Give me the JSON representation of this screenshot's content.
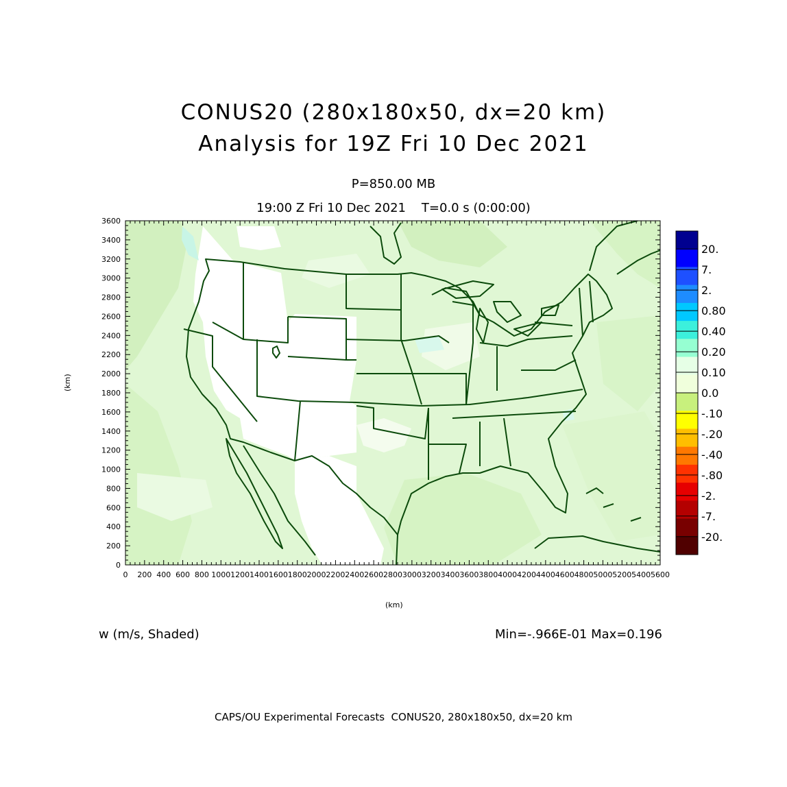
{
  "header": {
    "title_line1": "CONUS20 (280x180x50, dx=20 km)",
    "title_line2": "Analysis for 19Z Fri 10 Dec 2021",
    "level": "P=850.00 MB",
    "time": "19:00 Z Fri 10 Dec 2021    T=0.0 s (0:00:00)"
  },
  "axes": {
    "x_label": "(km)",
    "y_label": "(km)",
    "x_ticks": [
      0,
      200,
      400,
      600,
      800,
      1000,
      1200,
      1400,
      1600,
      1800,
      2000,
      2200,
      2400,
      2600,
      2800,
      3000,
      3200,
      3400,
      3600,
      3800,
      4000,
      4200,
      4400,
      4600,
      4800,
      5000,
      5200,
      5400,
      5600
    ],
    "y_ticks": [
      0,
      200,
      400,
      600,
      800,
      1000,
      1200,
      1400,
      1600,
      1800,
      2000,
      2200,
      2400,
      2600,
      2800,
      3000,
      3200,
      3400,
      3600
    ],
    "xlim": [
      0,
      5600
    ],
    "ylim": [
      0,
      3600
    ]
  },
  "colorbar": {
    "labels": [
      "20.",
      "7.",
      "2.",
      "0.80",
      "0.40",
      "0.20",
      "0.10",
      "0.0",
      "-.10",
      "-.20",
      "-.40",
      "-.80",
      "-2.",
      "-7.",
      "-20."
    ],
    "colors": [
      "#000090",
      "#0000ff",
      "#1e50ff",
      "#1e8cff",
      "#00c8ff",
      "#3cf0dc",
      "#96ffd2",
      "#e6ffe6",
      "#f0ffdc",
      "#c8f07d",
      "#ffff00",
      "#ffbe00",
      "#ff7800",
      "#ff3200",
      "#e60000",
      "#b40000",
      "#780000",
      "#500000"
    ]
  },
  "field": {
    "description": "w (m/s, Shaded)",
    "minmax": "Min=-.966E-01 Max=0.196"
  },
  "footer": "CAPS/OU Experimental Forecasts  CONUS20, 280x180x50, dx=20 km",
  "map": {
    "background_color": "#e0f7d4",
    "land_lines": "#0b4a0b",
    "region": "Contiguous United States"
  }
}
